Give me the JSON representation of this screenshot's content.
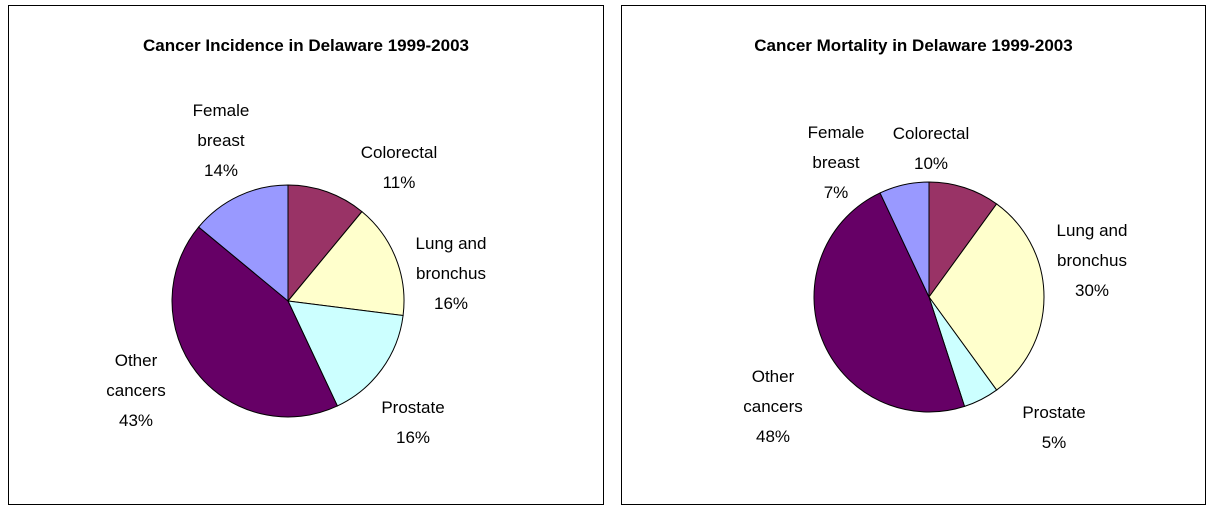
{
  "chart_data": [
    {
      "type": "pie",
      "title": "Cancer Incidence in Delaware 1999-2003",
      "categories": [
        "Colorectal",
        "Lung and bronchus",
        "Prostate",
        "Other cancers",
        "Female breast"
      ],
      "values": [
        11,
        16,
        16,
        43,
        14
      ],
      "value_labels": [
        "11%",
        "16%",
        "16%",
        "43%",
        "14%"
      ],
      "colors": [
        "#993366",
        "#ffffcc",
        "#ccffff",
        "#660066",
        "#9999ff"
      ]
    },
    {
      "type": "pie",
      "title": "Cancer Mortality in Delaware 1999-2003",
      "categories": [
        "Colorectal",
        "Lung and bronchus",
        "Prostate",
        "Other cancers",
        "Female breast"
      ],
      "values": [
        10,
        30,
        5,
        48,
        7
      ],
      "value_labels": [
        "10%",
        "30%",
        "5%",
        "48%",
        "7%"
      ],
      "colors": [
        "#993366",
        "#ffffcc",
        "#ccffff",
        "#660066",
        "#9999ff"
      ]
    }
  ]
}
